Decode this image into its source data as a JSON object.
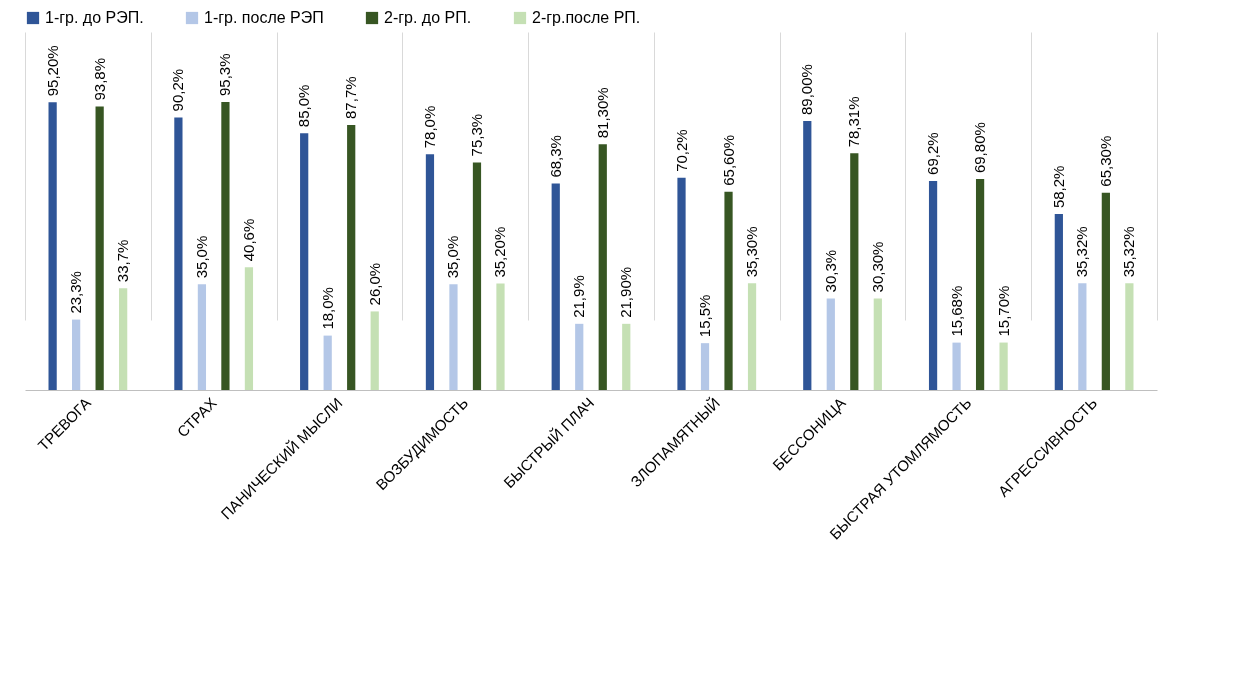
{
  "chart_data": {
    "type": "bar",
    "categories": [
      "ТРЕВОГА",
      "СТРАХ",
      "ПАНИЧЕСКИЙ МЫСЛИ",
      "ВОЗБУДИМОСТЬ",
      "БЫСТРЫЙ ПЛАЧ",
      "ЗЛОПАМЯТНЫЙ",
      "БЕССОНИЦА",
      "БЫСТРАЯ УТОМЛЯМОСТЬ",
      "АГРЕССИВНОСТЬ"
    ],
    "series": [
      {
        "name": "1-гр. до РЭП.",
        "color": "#2f5597",
        "values": [
          95.2,
          90.2,
          85.0,
          78.0,
          68.3,
          70.2,
          89.0,
          69.2,
          58.2
        ],
        "value_labels": [
          "95,20%",
          "90,2%",
          "85,0%",
          "78,0%",
          "68,3%",
          "70,2%",
          "89,00%",
          "69,2%",
          "58,2%"
        ]
      },
      {
        "name": "1-гр. после РЭП",
        "color": "#b4c7e7",
        "values": [
          23.3,
          35.0,
          18.0,
          35.0,
          21.9,
          15.5,
          30.3,
          15.68,
          35.32
        ],
        "value_labels": [
          "23,3%",
          "35,0%",
          "18,0%",
          "35,0%",
          "21,9%",
          "15,5%",
          "30,3%",
          "15,68%",
          "35,32%"
        ]
      },
      {
        "name": "2-гр. до РП.",
        "color": "#375623",
        "values": [
          93.8,
          95.3,
          87.7,
          75.3,
          81.3,
          65.6,
          78.31,
          69.8,
          65.3
        ],
        "value_labels": [
          "93,8%",
          "95,3%",
          "87,7%",
          "75,3%",
          "81,30%",
          "65,60%",
          "78,31%",
          "69,80%",
          "65,30%"
        ]
      },
      {
        "name": "2-гр.после РП.",
        "color": "#c5e0b4",
        "values": [
          33.7,
          40.6,
          26.0,
          35.2,
          21.9,
          35.3,
          30.3,
          15.7,
          35.32
        ],
        "value_labels": [
          "33,7%",
          "40,6%",
          "26,0%",
          "35,20%",
          "21,90%",
          "35,30%",
          "30,30%",
          "15,70%",
          "35,32%"
        ]
      }
    ],
    "tick_labels": "x",
    "grid": "x",
    "legend": "top"
  }
}
